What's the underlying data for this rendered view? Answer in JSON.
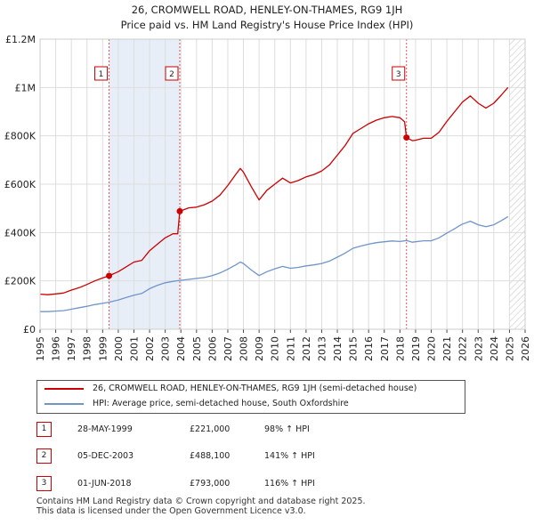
{
  "chart_data": {
    "type": "line",
    "title": "26, CROMWELL ROAD, HENLEY-ON-THAMES, RG9 1JH",
    "subtitle": "Price paid vs. HM Land Registry's House Price Index (HPI)",
    "xlim": [
      1995,
      2026
    ],
    "ylim": [
      0,
      1200000
    ],
    "y_ticks": [
      {
        "value": 0,
        "label": "£0"
      },
      {
        "value": 200000,
        "label": "£200K"
      },
      {
        "value": 400000,
        "label": "£400K"
      },
      {
        "value": 600000,
        "label": "£600K"
      },
      {
        "value": 800000,
        "label": "£800K"
      },
      {
        "value": 1000000,
        "label": "£1M"
      },
      {
        "value": 1200000,
        "label": "£1.2M"
      }
    ],
    "x_ticks": [
      "1995",
      "1996",
      "1997",
      "1998",
      "1999",
      "2000",
      "2001",
      "2002",
      "2003",
      "2004",
      "2005",
      "2006",
      "2007",
      "2008",
      "2009",
      "2010",
      "2011",
      "2012",
      "2013",
      "2014",
      "2015",
      "2016",
      "2017",
      "2018",
      "2019",
      "2020",
      "2021",
      "2022",
      "2023",
      "2024",
      "2025",
      "2026"
    ],
    "grid": true,
    "hatch_from": 2025.0,
    "series": [
      {
        "name": "26, CROMWELL ROAD, HENLEY-ON-THAMES, RG9 1JH (semi-detached house)",
        "color": "#cc0000",
        "points": [
          [
            1995.0,
            145000
          ],
          [
            1995.5,
            143000
          ],
          [
            1996.0,
            146000
          ],
          [
            1996.5,
            150000
          ],
          [
            1997.0,
            162000
          ],
          [
            1997.5,
            172000
          ],
          [
            1998.0,
            185000
          ],
          [
            1998.5,
            200000
          ],
          [
            1999.0,
            212000
          ],
          [
            1999.41,
            221000
          ],
          [
            2000.0,
            238000
          ],
          [
            2000.5,
            258000
          ],
          [
            2001.0,
            278000
          ],
          [
            2001.5,
            285000
          ],
          [
            2002.0,
            325000
          ],
          [
            2002.5,
            352000
          ],
          [
            2003.0,
            378000
          ],
          [
            2003.5,
            395000
          ],
          [
            2003.8,
            395000
          ],
          [
            2003.93,
            488100
          ],
          [
            2004.5,
            502000
          ],
          [
            2005.0,
            505000
          ],
          [
            2005.5,
            515000
          ],
          [
            2006.0,
            530000
          ],
          [
            2006.5,
            555000
          ],
          [
            2007.0,
            595000
          ],
          [
            2007.5,
            640000
          ],
          [
            2007.8,
            665000
          ],
          [
            2008.0,
            650000
          ],
          [
            2008.5,
            590000
          ],
          [
            2009.0,
            535000
          ],
          [
            2009.5,
            575000
          ],
          [
            2010.0,
            600000
          ],
          [
            2010.5,
            625000
          ],
          [
            2011.0,
            605000
          ],
          [
            2011.5,
            615000
          ],
          [
            2012.0,
            630000
          ],
          [
            2012.5,
            640000
          ],
          [
            2013.0,
            655000
          ],
          [
            2013.5,
            680000
          ],
          [
            2014.0,
            720000
          ],
          [
            2014.5,
            760000
          ],
          [
            2015.0,
            810000
          ],
          [
            2015.5,
            830000
          ],
          [
            2016.0,
            850000
          ],
          [
            2016.5,
            865000
          ],
          [
            2017.0,
            875000
          ],
          [
            2017.5,
            880000
          ],
          [
            2018.0,
            875000
          ],
          [
            2018.3,
            858000
          ],
          [
            2018.42,
            793000
          ],
          [
            2018.8,
            780000
          ],
          [
            2019.0,
            782000
          ],
          [
            2019.5,
            790000
          ],
          [
            2020.0,
            790000
          ],
          [
            2020.5,
            815000
          ],
          [
            2021.0,
            860000
          ],
          [
            2021.5,
            900000
          ],
          [
            2022.0,
            940000
          ],
          [
            2022.5,
            965000
          ],
          [
            2023.0,
            935000
          ],
          [
            2023.5,
            915000
          ],
          [
            2024.0,
            935000
          ],
          [
            2024.5,
            970000
          ],
          [
            2024.9,
            1000000
          ]
        ]
      },
      {
        "name": "HPI: Average price, semi-detached house, South Oxfordshire",
        "color": "#6f95c9",
        "points": [
          [
            1995.0,
            73000
          ],
          [
            1995.5,
            73000
          ],
          [
            1996.0,
            75000
          ],
          [
            1996.5,
            77000
          ],
          [
            1997.0,
            83000
          ],
          [
            1997.5,
            89000
          ],
          [
            1998.0,
            95000
          ],
          [
            1998.5,
            102000
          ],
          [
            1999.0,
            107000
          ],
          [
            1999.41,
            112000
          ],
          [
            2000.0,
            121000
          ],
          [
            2000.5,
            131000
          ],
          [
            2001.0,
            141000
          ],
          [
            2001.5,
            148000
          ],
          [
            2002.0,
            168000
          ],
          [
            2002.5,
            182000
          ],
          [
            2003.0,
            192000
          ],
          [
            2003.5,
            198000
          ],
          [
            2003.93,
            202000
          ],
          [
            2004.5,
            206000
          ],
          [
            2005.0,
            210000
          ],
          [
            2005.5,
            214000
          ],
          [
            2006.0,
            222000
          ],
          [
            2006.5,
            233000
          ],
          [
            2007.0,
            248000
          ],
          [
            2007.5,
            266000
          ],
          [
            2007.8,
            278000
          ],
          [
            2008.0,
            272000
          ],
          [
            2008.5,
            245000
          ],
          [
            2009.0,
            222000
          ],
          [
            2009.5,
            238000
          ],
          [
            2010.0,
            250000
          ],
          [
            2010.5,
            260000
          ],
          [
            2011.0,
            252000
          ],
          [
            2011.5,
            256000
          ],
          [
            2012.0,
            262000
          ],
          [
            2012.5,
            266000
          ],
          [
            2013.0,
            272000
          ],
          [
            2013.5,
            282000
          ],
          [
            2014.0,
            298000
          ],
          [
            2014.5,
            315000
          ],
          [
            2015.0,
            335000
          ],
          [
            2015.5,
            344000
          ],
          [
            2016.0,
            352000
          ],
          [
            2016.5,
            358000
          ],
          [
            2017.0,
            362000
          ],
          [
            2017.5,
            365000
          ],
          [
            2018.0,
            363000
          ],
          [
            2018.42,
            367000
          ],
          [
            2018.8,
            360000
          ],
          [
            2019.0,
            362000
          ],
          [
            2019.5,
            366000
          ],
          [
            2020.0,
            366000
          ],
          [
            2020.5,
            378000
          ],
          [
            2021.0,
            398000
          ],
          [
            2021.5,
            416000
          ],
          [
            2021.8,
            428000
          ],
          [
            2022.0,
            435000
          ],
          [
            2022.5,
            447000
          ],
          [
            2023.0,
            432000
          ],
          [
            2023.5,
            424000
          ],
          [
            2024.0,
            432000
          ],
          [
            2024.5,
            450000
          ],
          [
            2024.9,
            466000
          ]
        ]
      }
    ],
    "sales": [
      {
        "num": "1",
        "date": "28-MAY-1999",
        "price": "£221,000",
        "hpi": "98% ↑ HPI",
        "x": 1999.41,
        "y": 221000
      },
      {
        "num": "2",
        "date": "05-DEC-2003",
        "price": "£488,100",
        "hpi": "141% ↑ HPI",
        "x": 2003.93,
        "y": 488100
      },
      {
        "num": "3",
        "date": "01-JUN-2018",
        "price": "£793,000",
        "hpi": "116% ↑ HPI",
        "x": 2018.42,
        "y": 793000
      }
    ],
    "shaded_spans": [
      [
        1999.41,
        2003.93
      ]
    ]
  },
  "legend": {
    "property_label": "26, CROMWELL ROAD, HENLEY-ON-THAMES, RG9 1JH (semi-detached house)",
    "hpi_label": "HPI: Average price, semi-detached house, South Oxfordshire",
    "property_color": "#cc0000",
    "hpi_color": "#6f95c9"
  },
  "footer": {
    "line1": "Contains HM Land Registry data © Crown copyright and database right 2025.",
    "line2": "This data is licensed under the Open Government Licence v3.0."
  }
}
